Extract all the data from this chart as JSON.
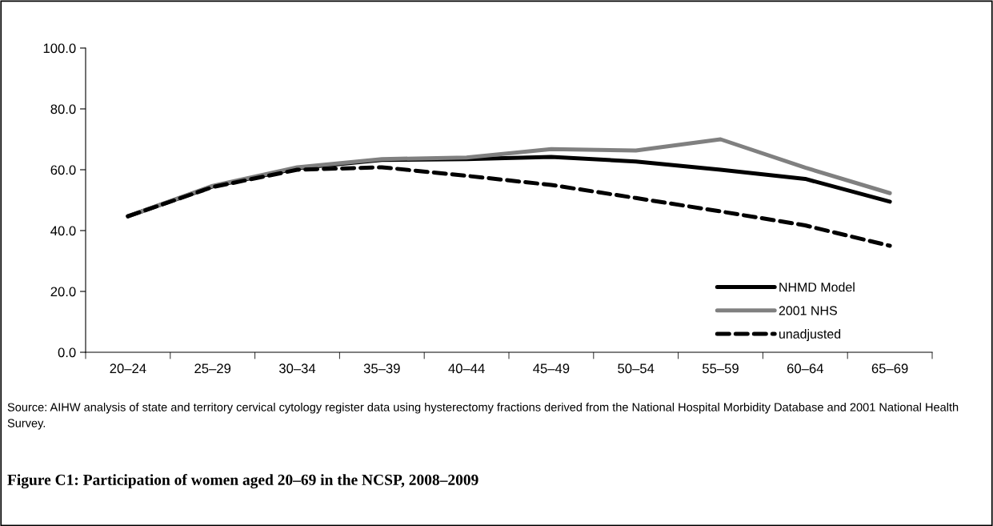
{
  "chart_data": {
    "type": "line",
    "title": "Figure C1: Participation of women aged 20–69 in the NCSP, 2008–2009",
    "categories": [
      "20–24",
      "25–29",
      "30–34",
      "35–39",
      "40–44",
      "45–49",
      "50–54",
      "55–59",
      "60–64",
      "65–69"
    ],
    "series": [
      {
        "name": "NHMD Model",
        "color": "#000000",
        "line_style": "solid",
        "values": [
          44.7,
          54.5,
          60.5,
          63.2,
          63.5,
          64.2,
          62.7,
          60.0,
          57.0,
          49.5
        ]
      },
      {
        "name": "2001 NHS",
        "color": "#808080",
        "line_style": "solid",
        "values": [
          44.7,
          54.7,
          60.8,
          63.5,
          64.0,
          66.8,
          66.3,
          70.0,
          60.7,
          52.3
        ]
      },
      {
        "name": "unadjusted",
        "color": "#000000",
        "line_style": "dashed",
        "values": [
          44.7,
          54.3,
          60.0,
          60.8,
          58.0,
          55.0,
          50.7,
          46.3,
          41.7,
          35.0
        ]
      }
    ],
    "ylim": [
      0,
      100
    ],
    "yticks": [
      {
        "value": 0,
        "label": "0.0"
      },
      {
        "value": 20,
        "label": "20.0"
      },
      {
        "value": 40,
        "label": "40.0"
      },
      {
        "value": 60,
        "label": "60.0"
      },
      {
        "value": 80,
        "label": "80.0"
      },
      {
        "value": 100,
        "label": "100.0"
      }
    ],
    "grid": false,
    "legend": "bottom right",
    "marker": "none",
    "annotations": [
      "Source: AIHW analysis of state and territory cervical cytology register data using hysterectomy fractions derived from the National Hospital Morbidity Database and 2001 National Health Survey."
    ]
  }
}
